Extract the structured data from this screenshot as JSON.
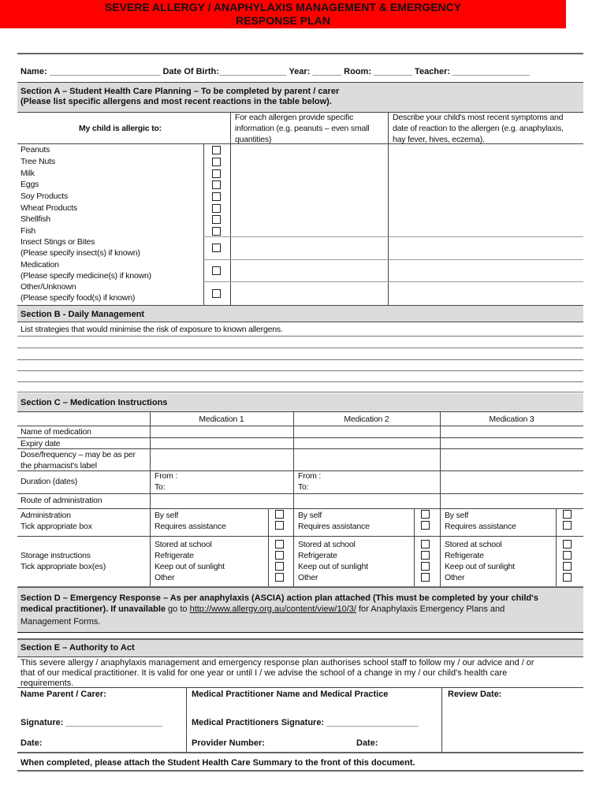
{
  "title": {
    "line1": "SEVERE ALLERGY / ANAPHYLAXIS MANAGEMENT & EMERGENCY",
    "line2": "RESPONSE PLAN",
    "color": "#ff0000"
  },
  "header_fields": "Name: _______________________ Date Of Birth:______________ Year: ______ Room: ________ Teacher: ________________",
  "section_a": {
    "line1": "Section A – Student Health Care Planning – To be completed by parent / carer",
    "line2": "(Please list specific allergens and most recent reactions in the table below).",
    "col1": "My child is allergic to:",
    "col2": [
      "For each allergen provide specific",
      "information (e.g. peanuts – even small",
      "quantities)"
    ],
    "col3": [
      "Describe your child's most recent symptoms and",
      "date of reaction to the allergen (e.g. anaphylaxis,",
      "hay fever, hives, eczema)."
    ],
    "allergens": [
      [
        "Peanuts"
      ],
      [
        "Tree Nuts"
      ],
      [
        "Milk"
      ],
      [
        "Eggs"
      ],
      [
        "Soy Products"
      ],
      [
        "Wheat Products"
      ],
      [
        "Shellfish"
      ],
      [
        "Fish"
      ],
      [
        "Insect Stings or Bites",
        "(Please specify insect(s) if known)"
      ],
      [
        "Medication",
        "(Please specify medicine(s) if known)"
      ],
      [
        "Other/Unknown",
        "(Please specify food(s) if known)"
      ]
    ]
  },
  "section_b": {
    "title": "Section B - Daily Management",
    "prompt": "List strategies that would minimise the risk of exposure to known allergens."
  },
  "section_c": {
    "title": "Section C – Medication Instructions",
    "medications": [
      "Medication 1",
      "Medication 2",
      "Medication 3"
    ],
    "rows": {
      "name": "Name of medication",
      "expiry": "Expiry date",
      "dose": [
        "Dose/frequency – may be as per",
        "the pharmacist's label"
      ],
      "duration": "Duration (dates)",
      "route": "Route of administration",
      "admin": [
        "Administration",
        "Tick appropriate box"
      ],
      "storage": [
        "Storage instructions",
        "Tick appropriate box(es)"
      ]
    },
    "from": "From :",
    "to": "To:",
    "admin_options": [
      "By self",
      "Requires assistance"
    ],
    "storage_options": [
      "Stored at school",
      "Refrigerate",
      "Keep out of sunlight",
      "Other"
    ]
  },
  "section_d": {
    "bold1": "Section D – Emergency Response – As per anaphylaxis (ASCIA) action plan attached (This must be completed by your child's",
    "bold2": "medical practitioner).  If unavailable",
    "normal2": " go to ",
    "link": "http://www.allergy.org.au/content/view/10/3/",
    "after_link": " for Anaphylaxis Emergency Plans and",
    "line3": "Management Forms."
  },
  "section_e": {
    "title": "Section E – Authority to Act",
    "text": [
      "This severe allergy / anaphylaxis management and emergency response plan authorises school staff to follow my / our advice and / or",
      "that of our medical practitioner.  It is valid for one year or until I / we advise the school of a change in my / our child's health care",
      "requirements."
    ],
    "parent": "Name Parent / Carer:",
    "practitioner": "Medical Practitioner Name and Medical Practice",
    "review": "Review Date:",
    "signature": "Signature: ____________________",
    "prac_signature": "Medical Practitioners Signature: ___________________",
    "date": "Date:",
    "provider": "Provider Number:",
    "prac_date": "Date:"
  },
  "footer": "When completed, please attach the Student Health Care Summary to the front of this document."
}
